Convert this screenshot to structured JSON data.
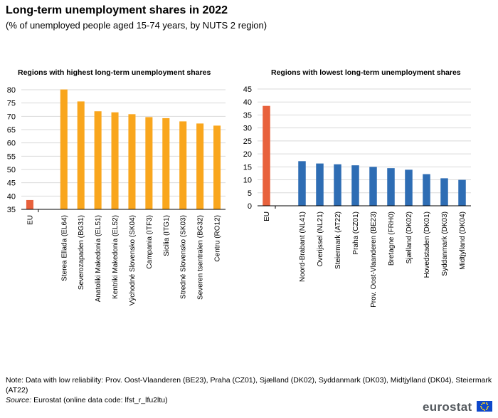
{
  "header": {
    "title": "Long-term unemployment shares in 2022",
    "subtitle": "(% of unemployed  people aged 15-74 years, by NUTS  2 region)"
  },
  "footer": {
    "note": "Note: Data with low reliability: Prov. Oost-Vlaanderen (BE23), Praha (CZ01), Sjælland (DK02), Syddanmark (DK03), Midtjylland (DK04), Steiermark (AT22)",
    "source_label": "Source:",
    "source_text": " Eurostat (online data code: lfst_r_lfu2ltu)",
    "logo_text": "eurostat"
  },
  "colors": {
    "eu": "#e8613c",
    "highest": "#f9a61d",
    "lowest": "#2e6db4",
    "grid": "#d9d9d9",
    "axis": "#000000"
  },
  "chart_data": [
    {
      "type": "bar",
      "title": "Regions with highest long-term unemployment shares",
      "xlabel": "",
      "ylabel": "",
      "ylim": [
        35,
        80
      ],
      "yticks": [
        35,
        40,
        45,
        50,
        55,
        60,
        65,
        70,
        75,
        80
      ],
      "grid": true,
      "legend": "none",
      "categories": [
        "EU",
        "Sterea Ellada (EL64)",
        "Severozapaden (BG31)",
        "Anatoliki Makedonia (EL51)",
        "Kentriki Makedonia (EL52)",
        "Východné Slovensko (SK04)",
        "Campania (ITF3)",
        "Sicilia (ITG1)",
        "Stredné Slovensko (SK03)",
        "Severen tsentralen (BG32)",
        "Centru (RO12)"
      ],
      "values": [
        38.5,
        80.1,
        75.6,
        71.9,
        71.5,
        70.8,
        69.7,
        69.3,
        68.1,
        67.3,
        66.5
      ]
    },
    {
      "type": "bar",
      "title": "Regions with lowest long-term unemployment shares",
      "xlabel": "",
      "ylabel": "",
      "ylim": [
        0,
        45
      ],
      "yticks": [
        0,
        5,
        10,
        15,
        20,
        25,
        30,
        35,
        40,
        45
      ],
      "grid": true,
      "legend": "none",
      "categories": [
        "EU",
        "Noord-Brabant (NL41)",
        "Overijssel (NL21)",
        "Steiermark (AT22)",
        "Praha (CZ01)",
        "Prov. Oost-Vlaanderen (BE23)",
        "Bretagne (FRH0)",
        "Sjælland (DK02)",
        "Hovedstaden (DK01)",
        "Syddanmark (DK03)",
        "Midtjylland (DK04)"
      ],
      "values": [
        38.5,
        17.2,
        16.3,
        16.0,
        15.6,
        15.0,
        14.5,
        13.9,
        12.2,
        10.6,
        10.0
      ]
    }
  ]
}
